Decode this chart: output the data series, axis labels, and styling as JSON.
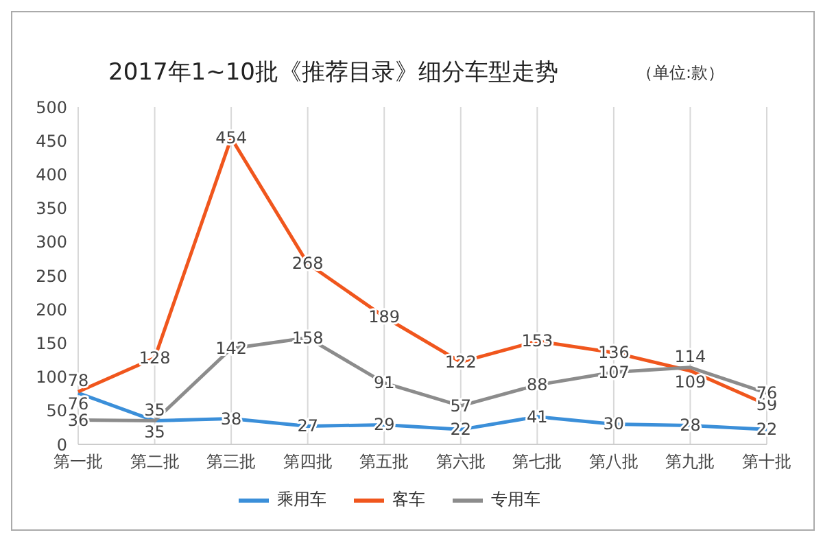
{
  "chart_data": {
    "type": "line",
    "title": "2017年1~10批《推荐目录》细分车型走势",
    "annotations": [
      "（单位:款）"
    ],
    "categories": [
      "第一批",
      "第二批",
      "第三批",
      "第四批",
      "第五批",
      "第六批",
      "第七批",
      "第八批",
      "第九批",
      "第十批"
    ],
    "series": [
      {
        "name": "乘用车",
        "color": "#3b8fd9",
        "values": [
          76,
          35,
          38,
          27,
          29,
          22,
          41,
          30,
          28,
          22
        ]
      },
      {
        "name": "客车",
        "color": "#f0561d",
        "values": [
          78,
          128,
          454,
          268,
          189,
          122,
          153,
          136,
          109,
          59
        ]
      },
      {
        "name": "专用车",
        "color": "#8c8c8c",
        "values": [
          36,
          35,
          142,
          158,
          91,
          57,
          88,
          107,
          114,
          76
        ]
      }
    ],
    "ylim": [
      0,
      500
    ],
    "yticks": [
      0,
      50,
      100,
      150,
      200,
      250,
      300,
      350,
      400,
      450,
      500
    ],
    "grid": "x",
    "legend": "bottom",
    "data_labels": true,
    "marker": "none",
    "line_style": "solid"
  }
}
